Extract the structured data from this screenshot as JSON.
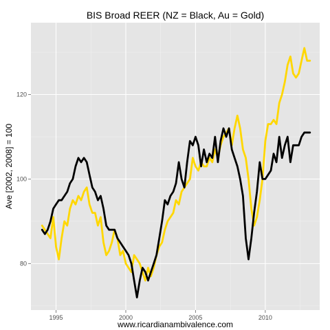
{
  "chart_data": {
    "type": "line",
    "title": "BIS Broad REER (NZ = Black, Au = Gold)",
    "xlabel": "www.ricardianambivalence.com",
    "ylabel": "Ave [2002, 2008] = 100",
    "xlim": [
      1993.2,
      2013.9
    ],
    "ylim": [
      69,
      137
    ],
    "x_ticks": [
      1995,
      2000,
      2005,
      2010
    ],
    "x_tick_labels": [
      "1995",
      "2000",
      "2005",
      "2010"
    ],
    "y_ticks": [
      80,
      100,
      120
    ],
    "y_tick_labels": [
      "80",
      "100",
      "120"
    ],
    "grid": true,
    "legend": "none",
    "background": "#e5e5e5",
    "series": [
      {
        "key": "au",
        "color": "#ffd700",
        "x": [
          1994.0,
          1994.2,
          1994.4,
          1994.6,
          1994.8,
          1995.0,
          1995.2,
          1995.4,
          1995.6,
          1995.8,
          1996.0,
          1996.2,
          1996.4,
          1996.6,
          1996.8,
          1997.0,
          1997.2,
          1997.4,
          1997.6,
          1997.8,
          1998.0,
          1998.2,
          1998.4,
          1998.6,
          1998.8,
          1999.0,
          1999.2,
          1999.4,
          1999.6,
          1999.8,
          2000.0,
          2000.2,
          2000.4,
          2000.6,
          2000.8,
          2001.0,
          2001.2,
          2001.4,
          2001.6,
          2001.8,
          2002.0,
          2002.2,
          2002.4,
          2002.6,
          2002.8,
          2003.0,
          2003.2,
          2003.4,
          2003.6,
          2003.8,
          2004.0,
          2004.2,
          2004.4,
          2004.6,
          2004.8,
          2005.0,
          2005.2,
          2005.4,
          2005.6,
          2005.8,
          2006.0,
          2006.2,
          2006.4,
          2006.6,
          2006.8,
          2007.0,
          2007.2,
          2007.4,
          2007.6,
          2007.8,
          2008.0,
          2008.2,
          2008.4,
          2008.6,
          2008.8,
          2009.0,
          2009.2,
          2009.4,
          2009.6,
          2009.8,
          2010.0,
          2010.2,
          2010.4,
          2010.6,
          2010.8,
          2011.0,
          2011.2,
          2011.4,
          2011.6,
          2011.8,
          2012.0,
          2012.2,
          2012.4,
          2012.6,
          2012.8,
          2013.0,
          2013.2
        ],
        "y": [
          89,
          88,
          87,
          86,
          91,
          84,
          81,
          86,
          90,
          89,
          93,
          95,
          94,
          96,
          95,
          97,
          98,
          94,
          92,
          92,
          89,
          91,
          85,
          82,
          83,
          85,
          88,
          86,
          82,
          83,
          80,
          79,
          78,
          82,
          81,
          80,
          78,
          76,
          79,
          77,
          79,
          82,
          84,
          85,
          88,
          90,
          91,
          92,
          95,
          94,
          97,
          98,
          99,
          100,
          105,
          103,
          102,
          104,
          103,
          103,
          105,
          104,
          107,
          105,
          108,
          110,
          111,
          112,
          108,
          112,
          115,
          112,
          107,
          105,
          100,
          93,
          89,
          91,
          95,
          100,
          109,
          113,
          113,
          114,
          113,
          118,
          120,
          123,
          127,
          129,
          125,
          124,
          125,
          128,
          131,
          128,
          128
        ]
      },
      {
        "key": "nz",
        "color": "#000000",
        "x": [
          1994.0,
          1994.2,
          1994.4,
          1994.6,
          1994.8,
          1995.0,
          1995.2,
          1995.4,
          1995.6,
          1995.8,
          1996.0,
          1996.2,
          1996.4,
          1996.6,
          1996.8,
          1997.0,
          1997.2,
          1997.4,
          1997.6,
          1997.8,
          1998.0,
          1998.2,
          1998.4,
          1998.6,
          1998.8,
          1999.0,
          1999.2,
          1999.4,
          1999.6,
          1999.8,
          2000.0,
          2000.2,
          2000.4,
          2000.6,
          2000.8,
          2001.0,
          2001.2,
          2001.4,
          2001.6,
          2001.8,
          2002.0,
          2002.2,
          2002.4,
          2002.6,
          2002.8,
          2003.0,
          2003.2,
          2003.4,
          2003.6,
          2003.8,
          2004.0,
          2004.2,
          2004.4,
          2004.6,
          2004.8,
          2005.0,
          2005.2,
          2005.4,
          2005.6,
          2005.8,
          2006.0,
          2006.2,
          2006.4,
          2006.6,
          2006.8,
          2007.0,
          2007.2,
          2007.4,
          2007.6,
          2007.8,
          2008.0,
          2008.2,
          2008.4,
          2008.6,
          2008.8,
          2009.0,
          2009.2,
          2009.4,
          2009.6,
          2009.8,
          2010.0,
          2010.2,
          2010.4,
          2010.6,
          2010.8,
          2011.0,
          2011.2,
          2011.4,
          2011.6,
          2011.8,
          2012.0,
          2012.2,
          2012.4,
          2012.6,
          2012.8,
          2013.0,
          2013.2
        ],
        "y": [
          88,
          87,
          88,
          90,
          93,
          94,
          95,
          95,
          96,
          97,
          99,
          100,
          103,
          105,
          104,
          105,
          104,
          101,
          98,
          97,
          95,
          96,
          93,
          89,
          88,
          88,
          88,
          86,
          85,
          84,
          83,
          82,
          80,
          76,
          72,
          76,
          79,
          78,
          76,
          78,
          80,
          82,
          86,
          90,
          95,
          94,
          96,
          97,
          99,
          104,
          100,
          98,
          104,
          109,
          108,
          110,
          108,
          103,
          107,
          104,
          106,
          105,
          110,
          104,
          109,
          112,
          110,
          112,
          107,
          105,
          103,
          100,
          96,
          86,
          81,
          86,
          92,
          97,
          104,
          100,
          100,
          101,
          102,
          106,
          104,
          110,
          105,
          108,
          110,
          104,
          108,
          108,
          108,
          110,
          111,
          111,
          111
        ]
      }
    ]
  }
}
